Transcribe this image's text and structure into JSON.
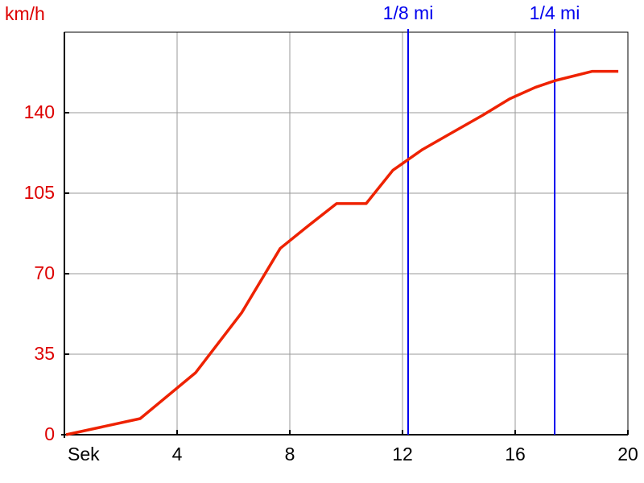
{
  "chart_data": {
    "type": "line",
    "y_label": "km/h",
    "x": [
      0.06,
      2.69,
      4.66,
      6.29,
      7.66,
      8.57,
      9.66,
      10.71,
      11.66,
      12.71,
      13.71,
      14.86,
      15.8,
      16.71,
      17.43,
      18.74,
      19.66
    ],
    "values": [
      0,
      7,
      27,
      53,
      81,
      90,
      100.5,
      100.5,
      115,
      124,
      131,
      139,
      146,
      151,
      154,
      158,
      158
    ],
    "color": "#ee2200",
    "xlim": [
      0,
      20
    ],
    "xticks": [
      {
        "value": 0,
        "label": "Sek"
      },
      4,
      8,
      12,
      16,
      20
    ],
    "ylim": [
      0,
      175
    ],
    "yticks": [
      0,
      35,
      70,
      105,
      140
    ],
    "grid": true,
    "markers": [
      {
        "value": 12.2,
        "label": "1/8 mi",
        "color": "#0000ee"
      },
      {
        "value": 17.4,
        "label": "1/4 mi",
        "color": "#0000ee"
      }
    ]
  }
}
